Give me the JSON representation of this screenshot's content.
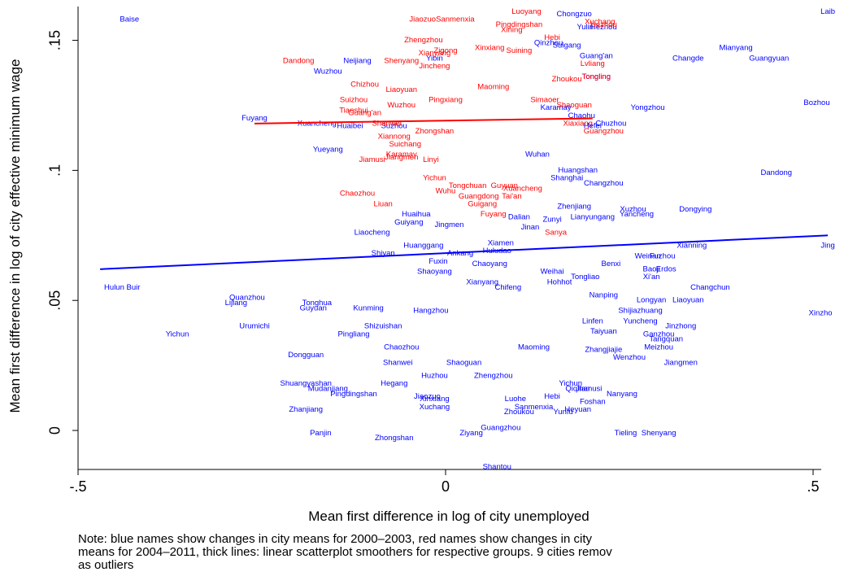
{
  "chart_data": {
    "type": "scatter",
    "xlabel": "Mean first difference in log of city unemployed",
    "ylabel": "Mean first difference in log of city effective minimum wage",
    "xlim": [
      -0.5,
      0.5
    ],
    "ylim": [
      -0.015,
      0.163
    ],
    "x_ticks": [
      -0.5,
      0,
      0.5
    ],
    "x_tick_labels": [
      "-.5",
      "0",
      ".5"
    ],
    "y_ticks": [
      0,
      0.05,
      0.1,
      0.15
    ],
    "y_tick_labels": [
      "0",
      ".05",
      ".1",
      ".15"
    ],
    "grid": false,
    "series": [
      {
        "color": "#0000ff",
        "points": [
          {
            "label": "Baise",
            "x": -0.43,
            "y": 0.158
          },
          {
            "label": "Laib",
            "x": 0.52,
            "y": 0.161
          },
          {
            "label": "Chongzuo",
            "x": 0.175,
            "y": 0.16
          },
          {
            "label": "Yulin",
            "x": 0.19,
            "y": 0.155
          },
          {
            "label": "Hezhou",
            "x": 0.215,
            "y": 0.155
          },
          {
            "label": "Qinzhou",
            "x": 0.14,
            "y": 0.149
          },
          {
            "label": "Suigang",
            "x": 0.165,
            "y": 0.148
          },
          {
            "label": "Mianyang",
            "x": 0.395,
            "y": 0.147
          },
          {
            "label": "Guangyuan",
            "x": 0.44,
            "y": 0.143
          },
          {
            "label": "Changde",
            "x": 0.33,
            "y": 0.143
          },
          {
            "label": "Guang'an",
            "x": 0.205,
            "y": 0.144
          },
          {
            "label": "Neijiang",
            "x": -0.12,
            "y": 0.142
          },
          {
            "label": "Yibin",
            "x": -0.015,
            "y": 0.143
          },
          {
            "label": "Wuzhou",
            "x": -0.16,
            "y": 0.138
          },
          {
            "label": "Tongling",
            "x": 0.205,
            "y": 0.136
          },
          {
            "label": "Bozhou",
            "x": 0.505,
            "y": 0.126
          },
          {
            "label": "Yongzhou",
            "x": 0.275,
            "y": 0.124
          },
          {
            "label": "Karamay",
            "x": 0.15,
            "y": 0.124
          },
          {
            "label": "Chaohu",
            "x": 0.185,
            "y": 0.121
          },
          {
            "label": "Fuyang",
            "x": -0.26,
            "y": 0.12
          },
          {
            "label": "Xuancheng",
            "x": -0.175,
            "y": 0.118
          },
          {
            "label": "Huaibei",
            "x": -0.13,
            "y": 0.117
          },
          {
            "label": "Suzhou",
            "x": -0.07,
            "y": 0.117
          },
          {
            "label": "Hefei",
            "x": 0.2,
            "y": 0.117
          },
          {
            "label": "Chuzhou",
            "x": 0.225,
            "y": 0.118
          },
          {
            "label": "Yueyang",
            "x": -0.16,
            "y": 0.108
          },
          {
            "label": "Wuhan",
            "x": 0.125,
            "y": 0.106
          },
          {
            "label": "Huangshan",
            "x": 0.18,
            "y": 0.1
          },
          {
            "label": "Dandong",
            "x": 0.45,
            "y": 0.099
          },
          {
            "label": "Shanghai",
            "x": 0.165,
            "y": 0.097
          },
          {
            "label": "Changzhou",
            "x": 0.215,
            "y": 0.095
          },
          {
            "label": "Xuzhou",
            "x": 0.255,
            "y": 0.085
          },
          {
            "label": "Dongying",
            "x": 0.34,
            "y": 0.085
          },
          {
            "label": "Yancheng",
            "x": 0.26,
            "y": 0.083
          },
          {
            "label": "Zhenjiang",
            "x": 0.175,
            "y": 0.086
          },
          {
            "label": "Huaihua",
            "x": -0.04,
            "y": 0.083
          },
          {
            "label": "Guiyang",
            "x": -0.05,
            "y": 0.08
          },
          {
            "label": "Jingmen",
            "x": 0.005,
            "y": 0.079
          },
          {
            "label": "Dalian",
            "x": 0.1,
            "y": 0.082
          },
          {
            "label": "Lianyungang",
            "x": 0.2,
            "y": 0.082
          },
          {
            "label": "Zunyi",
            "x": 0.145,
            "y": 0.081
          },
          {
            "label": "Jinan",
            "x": 0.115,
            "y": 0.078
          },
          {
            "label": "Liaocheng",
            "x": -0.1,
            "y": 0.076
          },
          {
            "label": "Xiamen",
            "x": 0.075,
            "y": 0.072
          },
          {
            "label": "Huludao",
            "x": 0.07,
            "y": 0.069
          },
          {
            "label": "Xianning",
            "x": 0.335,
            "y": 0.071
          },
          {
            "label": "Jing",
            "x": 0.52,
            "y": 0.071
          },
          {
            "label": "Huanggang",
            "x": -0.03,
            "y": 0.071
          },
          {
            "label": "Shiyan",
            "x": -0.085,
            "y": 0.068
          },
          {
            "label": "Ankang",
            "x": 0.02,
            "y": 0.068
          },
          {
            "label": "Fuxin",
            "x": -0.01,
            "y": 0.065
          },
          {
            "label": "Chaoyang",
            "x": 0.06,
            "y": 0.064
          },
          {
            "label": "Benxi",
            "x": 0.225,
            "y": 0.064
          },
          {
            "label": "Weinan",
            "x": 0.275,
            "y": 0.067
          },
          {
            "label": "Fuzhou",
            "x": 0.295,
            "y": 0.067
          },
          {
            "label": "Baoji",
            "x": 0.28,
            "y": 0.062
          },
          {
            "label": "Erdos",
            "x": 0.3,
            "y": 0.062
          },
          {
            "label": "Xi'an",
            "x": 0.28,
            "y": 0.059
          },
          {
            "label": "Shaoyang",
            "x": -0.015,
            "y": 0.061
          },
          {
            "label": "Weihai",
            "x": 0.145,
            "y": 0.061
          },
          {
            "label": "Tongliao",
            "x": 0.19,
            "y": 0.059
          },
          {
            "label": "Hohhot",
            "x": 0.155,
            "y": 0.057
          },
          {
            "label": "Xianyang",
            "x": 0.05,
            "y": 0.057
          },
          {
            "label": "Chifeng",
            "x": 0.085,
            "y": 0.055
          },
          {
            "label": "Changchun",
            "x": 0.36,
            "y": 0.055
          },
          {
            "label": "Hulun Buir",
            "x": -0.44,
            "y": 0.055
          },
          {
            "label": "Nanping",
            "x": 0.215,
            "y": 0.052
          },
          {
            "label": "Longyan",
            "x": 0.28,
            "y": 0.05
          },
          {
            "label": "Liaoyuan",
            "x": 0.33,
            "y": 0.05
          },
          {
            "label": "Quanzhou",
            "x": -0.27,
            "y": 0.051
          },
          {
            "label": "Lijiang",
            "x": -0.285,
            "y": 0.049
          },
          {
            "label": "Tonghua",
            "x": -0.175,
            "y": 0.049
          },
          {
            "label": "Guyuan",
            "x": -0.18,
            "y": 0.047
          },
          {
            "label": "Kunming",
            "x": -0.105,
            "y": 0.047
          },
          {
            "label": "Hangzhou",
            "x": -0.02,
            "y": 0.046
          },
          {
            "label": "Xinzho",
            "x": 0.51,
            "y": 0.045
          },
          {
            "label": "Shijiazhuang",
            "x": 0.265,
            "y": 0.046
          },
          {
            "label": "Yuncheng",
            "x": 0.265,
            "y": 0.042
          },
          {
            "label": "Jinzhong",
            "x": 0.32,
            "y": 0.04
          },
          {
            "label": "Linfen",
            "x": 0.2,
            "y": 0.042
          },
          {
            "label": "Urumichi",
            "x": -0.26,
            "y": 0.04
          },
          {
            "label": "Yichun",
            "x": -0.365,
            "y": 0.037
          },
          {
            "label": "Shizuishan",
            "x": -0.085,
            "y": 0.04
          },
          {
            "label": "Pingliang",
            "x": -0.125,
            "y": 0.037
          },
          {
            "label": "Taiyuan",
            "x": 0.215,
            "y": 0.038
          },
          {
            "label": "Ganzhou",
            "x": 0.29,
            "y": 0.037
          },
          {
            "label": "Tangquan",
            "x": 0.3,
            "y": 0.035
          },
          {
            "label": "Meizhou",
            "x": 0.29,
            "y": 0.032
          },
          {
            "label": "Chaozhou",
            "x": -0.06,
            "y": 0.032
          },
          {
            "label": "Maoming",
            "x": 0.12,
            "y": 0.032
          },
          {
            "label": "Dongguan",
            "x": -0.19,
            "y": 0.029
          },
          {
            "label": "Wenzhou",
            "x": 0.25,
            "y": 0.028
          },
          {
            "label": "Jiangmen",
            "x": 0.32,
            "y": 0.026
          },
          {
            "label": "Shanwei",
            "x": -0.065,
            "y": 0.026
          },
          {
            "label": "Shaoguan",
            "x": 0.025,
            "y": 0.026
          },
          {
            "label": "Zhangjiajie",
            "x": 0.215,
            "y": 0.031
          },
          {
            "label": "Huzhou",
            "x": -0.015,
            "y": 0.021
          },
          {
            "label": "Zhengzhou",
            "x": 0.065,
            "y": 0.021
          },
          {
            "label": "Shuangyashan",
            "x": -0.19,
            "y": 0.018
          },
          {
            "label": "Hegang",
            "x": -0.07,
            "y": 0.018
          },
          {
            "label": "Mudanjiang",
            "x": -0.16,
            "y": 0.016
          },
          {
            "label": "Pingdingshan",
            "x": -0.125,
            "y": 0.014
          },
          {
            "label": "Yichun",
            "x": 0.17,
            "y": 0.018
          },
          {
            "label": "Qiqihar",
            "x": 0.18,
            "y": 0.016
          },
          {
            "label": "Jiamusi",
            "x": 0.195,
            "y": 0.016
          },
          {
            "label": "Nanyang",
            "x": 0.24,
            "y": 0.014
          },
          {
            "label": "Foshan",
            "x": 0.2,
            "y": 0.011
          },
          {
            "label": "Xinxiang",
            "x": -0.015,
            "y": 0.012
          },
          {
            "label": "Jiaozuo",
            "x": -0.025,
            "y": 0.013
          },
          {
            "label": "Luohe",
            "x": 0.095,
            "y": 0.012
          },
          {
            "label": "Hebi",
            "x": 0.145,
            "y": 0.013
          },
          {
            "label": "Sanmenxia",
            "x": 0.12,
            "y": 0.009
          },
          {
            "label": "Yunfu",
            "x": 0.16,
            "y": 0.007
          },
          {
            "label": "Heyuan",
            "x": 0.18,
            "y": 0.008
          },
          {
            "label": "Xuchang",
            "x": -0.015,
            "y": 0.009
          },
          {
            "label": "Zhoukou",
            "x": 0.1,
            "y": 0.007
          },
          {
            "label": "Zhanjiang",
            "x": -0.19,
            "y": 0.008
          },
          {
            "label": "Panjin",
            "x": -0.17,
            "y": -0.001
          },
          {
            "label": "Zhongshan",
            "x": -0.07,
            "y": -0.003
          },
          {
            "label": "Ziyang",
            "x": 0.035,
            "y": -0.001
          },
          {
            "label": "Guangzhou",
            "x": 0.075,
            "y": 0.001
          },
          {
            "label": "Tieling",
            "x": 0.245,
            "y": -0.001
          },
          {
            "label": "Shenyang",
            "x": 0.29,
            "y": -0.001
          },
          {
            "label": "Shantou",
            "x": 0.07,
            "y": -0.014
          }
        ]
      },
      {
        "color": "#ff0000",
        "points": [
          {
            "label": "Luoyang",
            "x": 0.11,
            "y": 0.161
          },
          {
            "label": "JiaozuoSanmenxia",
            "x": -0.005,
            "y": 0.158
          },
          {
            "label": "Xuchang",
            "x": 0.21,
            "y": 0.157
          },
          {
            "label": "Hezhou",
            "x": 0.215,
            "y": 0.156
          },
          {
            "label": "Pingdingshan",
            "x": 0.1,
            "y": 0.156
          },
          {
            "label": "Xining",
            "x": 0.09,
            "y": 0.154
          },
          {
            "label": "Hebi",
            "x": 0.145,
            "y": 0.151
          },
          {
            "label": "Zhengzhou",
            "x": -0.03,
            "y": 0.15
          },
          {
            "label": "Zigong",
            "x": 0.0,
            "y": 0.146
          },
          {
            "label": "Xinxiang",
            "x": 0.06,
            "y": 0.147
          },
          {
            "label": "Suining",
            "x": 0.1,
            "y": 0.146
          },
          {
            "label": "Xianyang",
            "x": -0.015,
            "y": 0.145
          },
          {
            "label": "Dandong",
            "x": -0.2,
            "y": 0.142
          },
          {
            "label": "Shenyang",
            "x": -0.06,
            "y": 0.142
          },
          {
            "label": "Lvliang",
            "x": 0.2,
            "y": 0.141
          },
          {
            "label": "Jincheng",
            "x": -0.015,
            "y": 0.14
          },
          {
            "label": "Tongling",
            "x": 0.205,
            "y": 0.136
          },
          {
            "label": "Zhoukou",
            "x": 0.165,
            "y": 0.135
          },
          {
            "label": "Chizhou",
            "x": -0.11,
            "y": 0.133
          },
          {
            "label": "Liaoyuan",
            "x": -0.06,
            "y": 0.131
          },
          {
            "label": "Maoming",
            "x": 0.065,
            "y": 0.132
          },
          {
            "label": "Suizhou",
            "x": -0.125,
            "y": 0.127
          },
          {
            "label": "Pingxiang",
            "x": 0.0,
            "y": 0.127
          },
          {
            "label": "Simaoer",
            "x": 0.135,
            "y": 0.127
          },
          {
            "label": "Shaoguan",
            "x": 0.175,
            "y": 0.125
          },
          {
            "label": "Guang'an",
            "x": -0.11,
            "y": 0.122
          },
          {
            "label": "Tianshui",
            "x": -0.125,
            "y": 0.123
          },
          {
            "label": "Wuzhou",
            "x": -0.06,
            "y": 0.125
          },
          {
            "label": "Shanwei",
            "x": -0.08,
            "y": 0.118
          },
          {
            "label": "Xiaxiang",
            "x": 0.18,
            "y": 0.118
          },
          {
            "label": "Guangzhou",
            "x": 0.215,
            "y": 0.115
          },
          {
            "label": "Xiannong",
            "x": -0.07,
            "y": 0.113
          },
          {
            "label": "Suichang",
            "x": -0.055,
            "y": 0.11
          },
          {
            "label": "Zhongshan",
            "x": -0.015,
            "y": 0.115
          },
          {
            "label": "Jiangmen",
            "x": -0.06,
            "y": 0.105
          },
          {
            "label": "Karamay",
            "x": -0.06,
            "y": 0.106
          },
          {
            "label": "Jiamusi",
            "x": -0.1,
            "y": 0.104
          },
          {
            "label": "Linyi",
            "x": -0.02,
            "y": 0.104
          },
          {
            "label": "Yichun",
            "x": -0.015,
            "y": 0.097
          },
          {
            "label": "Tongchuan",
            "x": 0.03,
            "y": 0.094
          },
          {
            "label": "Guyuan",
            "x": 0.08,
            "y": 0.094
          },
          {
            "label": "Xuancheng",
            "x": 0.105,
            "y": 0.093
          },
          {
            "label": "Wuhu",
            "x": 0.0,
            "y": 0.092
          },
          {
            "label": "Tai'an",
            "x": 0.09,
            "y": 0.09
          },
          {
            "label": "Chaozhou",
            "x": -0.12,
            "y": 0.091
          },
          {
            "label": "Guangdong",
            "x": 0.045,
            "y": 0.09
          },
          {
            "label": "Guigang",
            "x": 0.05,
            "y": 0.087
          },
          {
            "label": "Liuan",
            "x": -0.085,
            "y": 0.087
          },
          {
            "label": "Fuyang",
            "x": 0.065,
            "y": 0.083
          },
          {
            "label": "Sanya",
            "x": 0.15,
            "y": 0.076
          }
        ]
      }
    ],
    "fit_lines": [
      {
        "color": "#0000ff",
        "x": [
          -0.47,
          0.52
        ],
        "y": [
          0.062,
          0.075
        ]
      },
      {
        "color": "#ff0000",
        "x": [
          -0.26,
          0.2
        ],
        "y": [
          0.118,
          0.12
        ]
      }
    ]
  },
  "note": "Note: blue names show changes in city means for 2000–2003, red names show changes in city\nmeans for 2004–2011, thick lines: linear scatterplot smoothers for respective groups. 9 cities remov\nas outliers"
}
